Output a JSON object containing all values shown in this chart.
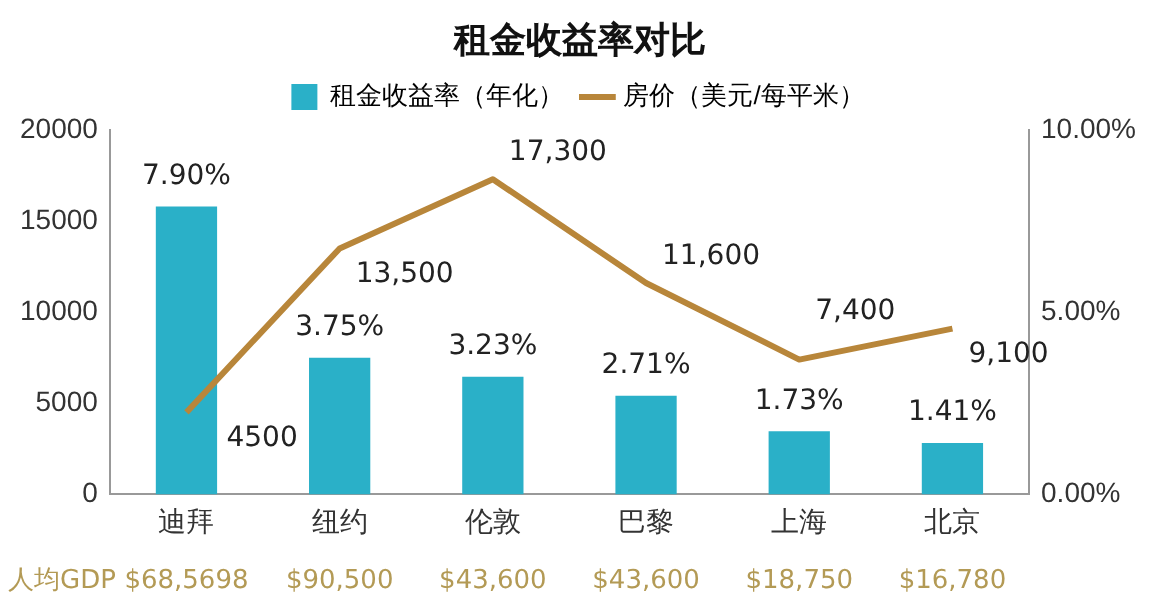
{
  "chart_data": {
    "type": "bar",
    "title": "租金收益率对比",
    "categories": [
      "迪拜",
      "纽约",
      "伦敦",
      "巴黎",
      "上海",
      "北京"
    ],
    "series": [
      {
        "name": "租金收益率（年化）",
        "axis": "y2",
        "color": "#2ab0c8",
        "values": [
          7.9,
          3.75,
          3.23,
          2.71,
          1.73,
          1.41
        ],
        "value_labels": [
          "7.90%",
          "3.75%",
          "3.23%",
          "2.71%",
          "1.73%",
          "1.41%"
        ]
      },
      {
        "name": "房价（美元/每平米）",
        "type": "line",
        "axis": "y",
        "color": "#b8863a",
        "values": [
          4500,
          13500,
          17300,
          11600,
          7400,
          9100
        ],
        "value_labels": [
          "4500",
          "13,500",
          "17,300",
          "11,600",
          "7,400",
          "9,100"
        ]
      }
    ],
    "ylim": [
      0,
      20000
    ],
    "yticks": [
      0,
      5000,
      10000,
      15000,
      20000
    ],
    "y2lim": [
      0,
      10
    ],
    "y2ticks": [
      {
        "value": 0,
        "label": "0.00%"
      },
      {
        "value": 5,
        "label": "5.00%"
      },
      {
        "value": 10,
        "label": "10.00%"
      }
    ],
    "grid": false,
    "legend": "top",
    "marker": "none",
    "line_style": "solid",
    "annotations": [
      "人均GDP",
      "$68,5698",
      "$90,500",
      "$43,600",
      "$43,600",
      "$18,750",
      "$16,780"
    ]
  }
}
